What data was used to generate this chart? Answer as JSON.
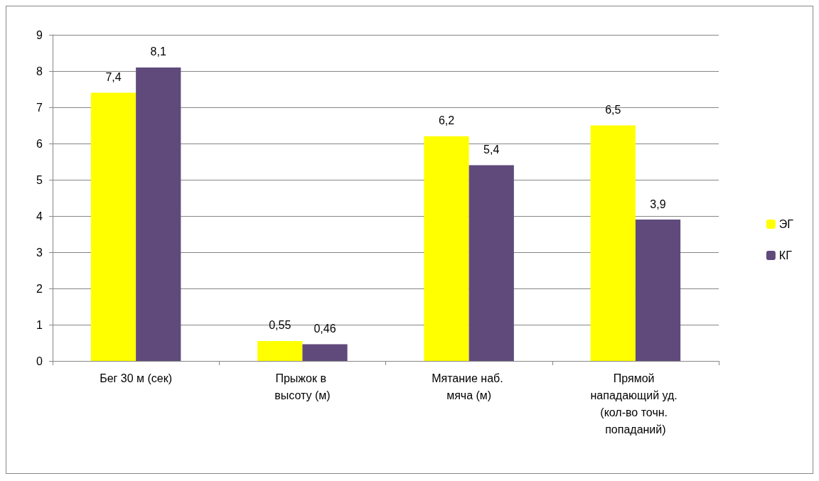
{
  "chart_data": {
    "type": "bar",
    "categories": [
      "Бег 30 м (сек)",
      "Прыжок в высоту (м)",
      "Мятание наб. мяча (м)",
      "Прямой нападающий уд. (кол-во точн. попаданий)"
    ],
    "series": [
      {
        "name": "ЭГ",
        "color": "#ffff00",
        "values": [
          7.4,
          0.55,
          6.2,
          6.5
        ],
        "value_labels": [
          "7,4",
          "0,55",
          "6,2",
          "6,5"
        ]
      },
      {
        "name": "КГ",
        "color": "#604a7b",
        "values": [
          8.1,
          0.46,
          5.4,
          3.9
        ],
        "value_labels": [
          "8,1",
          "0,46",
          "5,4",
          "3,9"
        ]
      }
    ],
    "ylim": [
      0,
      9
    ],
    "yticks": [
      0,
      1,
      2,
      3,
      4,
      5,
      6,
      7,
      8,
      9
    ],
    "grid": "y",
    "legend": "right"
  }
}
